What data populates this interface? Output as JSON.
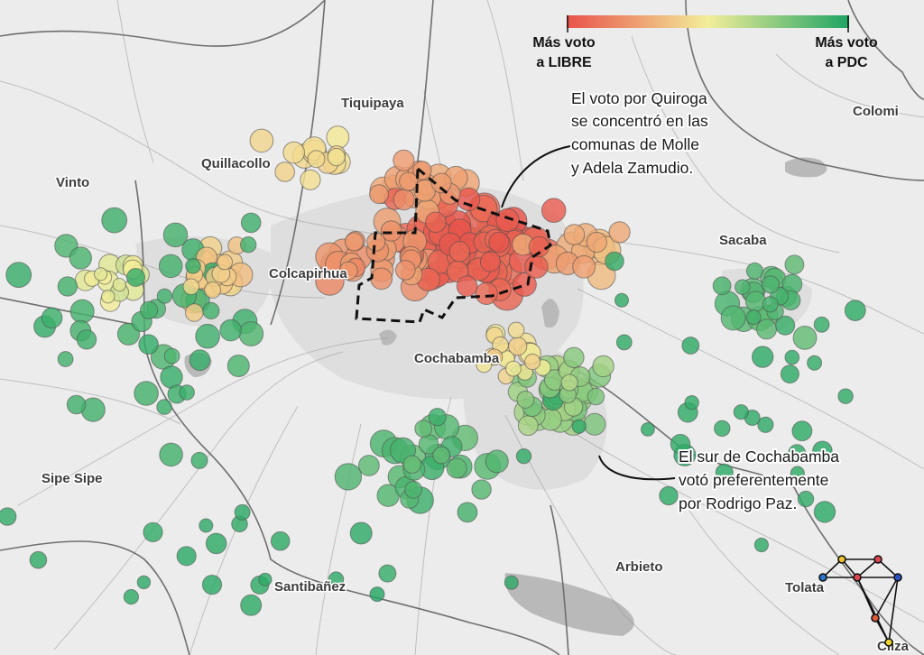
{
  "legend": {
    "left_line1": "Más voto",
    "left_line2": "a LIBRE",
    "right_line1": "Más voto",
    "right_line2": "a PDC",
    "color_low": "#e8524a",
    "color_mid": "#f3ee9a",
    "color_high": "#1fa463"
  },
  "places": [
    {
      "id": "tiquipaya",
      "label": "Tiquipaya"
    },
    {
      "id": "quillacollo",
      "label": "Quillacollo"
    },
    {
      "id": "vinto",
      "label": "Vinto"
    },
    {
      "id": "colcapirhua",
      "label": "Colcapirhua"
    },
    {
      "id": "cochabamba",
      "label": "Cochabamba"
    },
    {
      "id": "sacaba",
      "label": "Sacaba"
    },
    {
      "id": "colomi",
      "label": "Colomi"
    },
    {
      "id": "sipe-sipe",
      "label": "Sipe Sipe"
    },
    {
      "id": "santibanez",
      "label": "Santibañez"
    },
    {
      "id": "arbieto",
      "label": "Arbieto"
    },
    {
      "id": "tolata",
      "label": "Tolata"
    },
    {
      "id": "cliza",
      "label": "Cliza"
    }
  ],
  "annotations": [
    {
      "id": "quiroga",
      "lines": [
        "El voto por Quiroga",
        "se concentró en las",
        "comunas de Molle",
        "y Adela Zamudio."
      ]
    },
    {
      "id": "sur",
      "lines": [
        "El sur de Cochabamba",
        "votó preferentemente",
        "por Rodrigo Paz."
      ]
    }
  ],
  "colors": {
    "background": "#ececec",
    "road": "#9a9a9a",
    "boundary": "#6f6f6f",
    "water": "#b9b9b9",
    "urban": "#dedede"
  },
  "logo_icon": "network-graph-logo"
}
